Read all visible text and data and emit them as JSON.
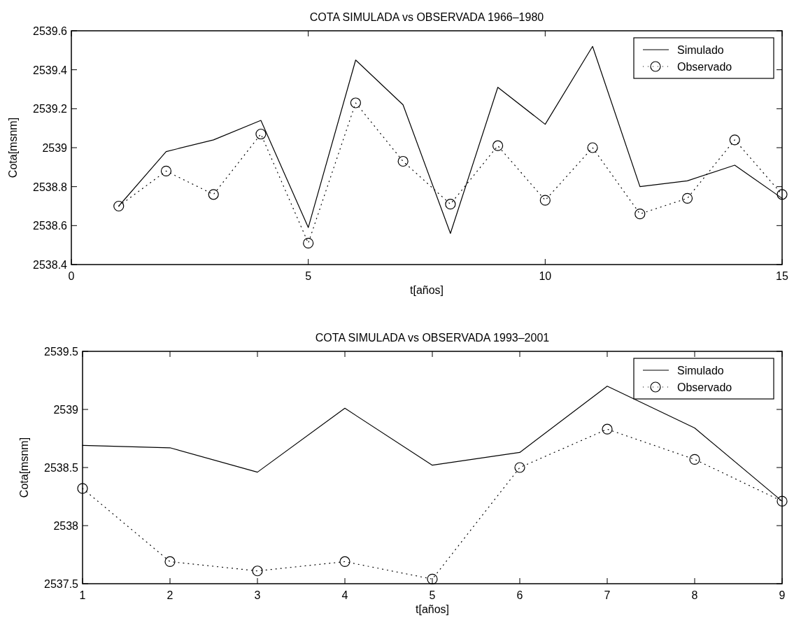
{
  "chart_data": [
    {
      "type": "line",
      "title": "COTA SIMULADA vs OBSERVADA 1966–1980",
      "xlabel": "t[años]",
      "ylabel": "Cota[msnm]",
      "x": [
        1,
        2,
        3,
        4,
        5,
        6,
        7,
        8,
        9,
        10,
        11,
        12,
        13,
        14,
        15
      ],
      "xlim": [
        0,
        15
      ],
      "xticks": [
        0,
        5,
        10,
        15
      ],
      "ylim": [
        2538.4,
        2539.6
      ],
      "yticks": [
        2538.4,
        2538.6,
        2538.8,
        2539,
        2539.2,
        2539.4,
        2539.6
      ],
      "legend": "top right",
      "series": [
        {
          "name": "Simulado",
          "color": "#000000",
          "line_style": "solid",
          "marker": "none",
          "values": [
            2538.7,
            2538.98,
            2539.04,
            2539.14,
            2538.59,
            2539.45,
            2539.22,
            2538.56,
            2539.31,
            2539.12,
            2539.52,
            2538.8,
            2538.83,
            2538.91,
            2538.74
          ]
        },
        {
          "name": "Observado",
          "color": "#000000",
          "line_style": "dotted",
          "marker": "circle",
          "values": [
            2538.7,
            2538.88,
            2538.76,
            2539.07,
            2538.51,
            2539.23,
            2538.93,
            2538.71,
            2539.01,
            2538.73,
            2539.0,
            2538.66,
            2538.74,
            2539.04,
            2538.76
          ]
        }
      ]
    },
    {
      "type": "line",
      "title": "COTA SIMULADA vs OBSERVADA 1993–2001",
      "xlabel": "t[años]",
      "ylabel": "Cota[msnm]",
      "x": [
        1,
        2,
        3,
        4,
        5,
        6,
        7,
        8,
        9
      ],
      "xlim": [
        1,
        9
      ],
      "xticks": [
        1,
        2,
        3,
        4,
        5,
        6,
        7,
        8,
        9
      ],
      "ylim": [
        2537.5,
        2539.5
      ],
      "yticks": [
        2537.5,
        2538,
        2538.5,
        2539,
        2539.5
      ],
      "legend": "top right",
      "series": [
        {
          "name": "Simulado",
          "color": "#000000",
          "line_style": "solid",
          "marker": "none",
          "values": [
            2538.69,
            2538.67,
            2538.46,
            2539.01,
            2538.52,
            2538.63,
            2539.2,
            2538.84,
            2538.21
          ]
        },
        {
          "name": "Observado",
          "color": "#000000",
          "line_style": "dotted",
          "marker": "circle",
          "values": [
            2538.32,
            2537.69,
            2537.61,
            2537.69,
            2537.54,
            2538.5,
            2538.83,
            2538.57,
            2538.21
          ]
        }
      ]
    }
  ]
}
